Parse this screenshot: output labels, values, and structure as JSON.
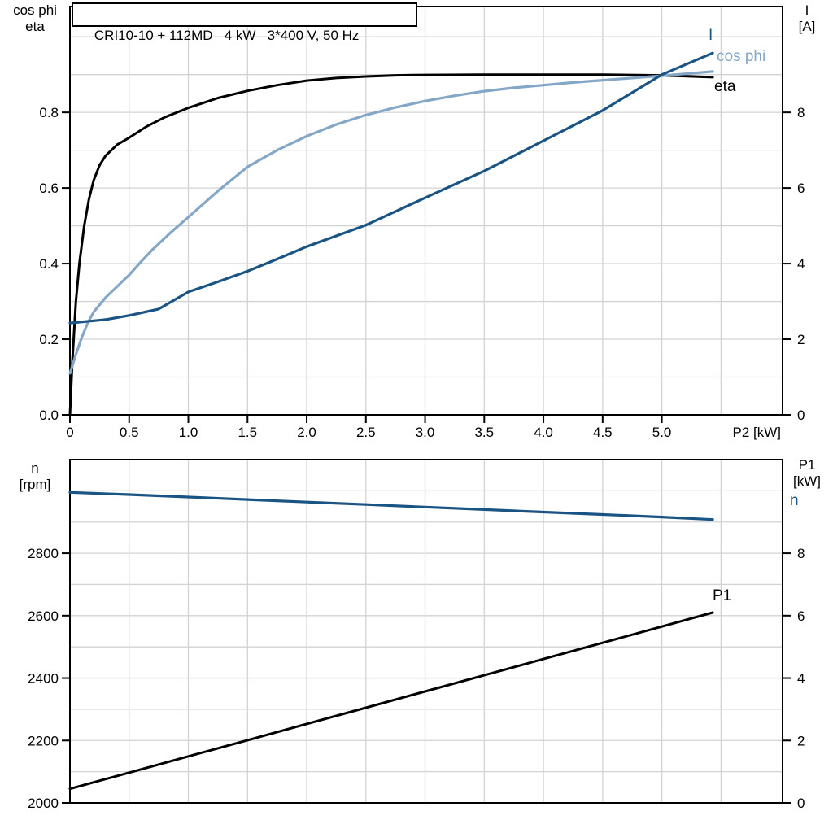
{
  "title": "CRI10-10 + 112MD   4 kW   3*400 V, 50 Hz",
  "colors": {
    "background": "#ffffff",
    "axis": "#000000",
    "grid": "#d3d3d3",
    "black_curve": "#000000",
    "dark_blue_curve": "#1a5484",
    "light_blue_curve": "#84a7c7"
  },
  "top_chart_corner_labels": {
    "left_line1": "cos phi",
    "left_line2": "eta",
    "right_line1": "I",
    "right_line2": "[A]"
  },
  "bottom_chart_corner_labels": {
    "left_line1": "n",
    "left_line2": "[rpm]",
    "right_line1": "P1",
    "right_line2": "[kW]"
  },
  "curve_labels": {
    "top_I": "I",
    "top_cosphi": "cos phi",
    "top_eta": "eta",
    "bottom_n": "n",
    "bottom_P1": "P1"
  },
  "chart_data": [
    {
      "name": "motor-electrical-curves",
      "type": "line",
      "title": "CRI10-10 + 112MD 4 kW 3*400 V, 50 Hz",
      "xlabel": "P2 [kW]",
      "x_range": [
        0,
        6.02
      ],
      "x_grid_step": 0.5,
      "x_ticks": [
        {
          "v": 0,
          "label": "0"
        },
        {
          "v": 0.5,
          "label": "0.5"
        },
        {
          "v": 1,
          "label": "1.0"
        },
        {
          "v": 1.5,
          "label": "1.5"
        },
        {
          "v": 2,
          "label": "2.0"
        },
        {
          "v": 2.5,
          "label": "2.5"
        },
        {
          "v": 3,
          "label": "3.0"
        },
        {
          "v": 3.5,
          "label": "3.5"
        },
        {
          "v": 4,
          "label": "4.0"
        },
        {
          "v": 4.5,
          "label": "4.5"
        },
        {
          "v": 5,
          "label": "5.0"
        }
      ],
      "left_axis": {
        "label": "cos phi / eta",
        "range": [
          0,
          1.08
        ],
        "grid_step": 0.1,
        "ticks": [
          {
            "v": 0,
            "label": "0.0"
          },
          {
            "v": 0.2,
            "label": "0.2"
          },
          {
            "v": 0.4,
            "label": "0.4"
          },
          {
            "v": 0.6,
            "label": "0.6"
          },
          {
            "v": 0.8,
            "label": "0.8"
          }
        ]
      },
      "right_axis": {
        "label": "I [A]",
        "range": [
          0,
          10.8
        ],
        "ticks": [
          {
            "v": 0,
            "label": "0"
          },
          {
            "v": 2,
            "label": "2"
          },
          {
            "v": 4,
            "label": "4"
          },
          {
            "v": 6,
            "label": "6"
          },
          {
            "v": 8,
            "label": "8"
          }
        ]
      },
      "series": [
        {
          "name": "eta",
          "axis": "left",
          "color_key": "black_curve",
          "width": 3,
          "points": [
            [
              0,
              0
            ],
            [
              0.02,
              0.14
            ],
            [
              0.05,
              0.3
            ],
            [
              0.08,
              0.4
            ],
            [
              0.12,
              0.5
            ],
            [
              0.16,
              0.57
            ],
            [
              0.2,
              0.62
            ],
            [
              0.25,
              0.66
            ],
            [
              0.3,
              0.685
            ],
            [
              0.4,
              0.715
            ],
            [
              0.5,
              0.733
            ],
            [
              0.65,
              0.763
            ],
            [
              0.8,
              0.787
            ],
            [
              1.0,
              0.812
            ],
            [
              1.25,
              0.838
            ],
            [
              1.5,
              0.857
            ],
            [
              1.75,
              0.872
            ],
            [
              2.0,
              0.884
            ],
            [
              2.25,
              0.891
            ],
            [
              2.5,
              0.895
            ],
            [
              2.75,
              0.898
            ],
            [
              3.0,
              0.899
            ],
            [
              3.5,
              0.9
            ],
            [
              4.0,
              0.9
            ],
            [
              4.5,
              0.9
            ],
            [
              5.0,
              0.898
            ],
            [
              5.43,
              0.893
            ]
          ]
        },
        {
          "name": "cos phi",
          "axis": "left",
          "color_key": "light_blue_curve",
          "width": 3.2,
          "points": [
            [
              0,
              0.11
            ],
            [
              0.05,
              0.16
            ],
            [
              0.1,
              0.205
            ],
            [
              0.15,
              0.243
            ],
            [
              0.2,
              0.272
            ],
            [
              0.3,
              0.31
            ],
            [
              0.4,
              0.34
            ],
            [
              0.5,
              0.37
            ],
            [
              0.6,
              0.405
            ],
            [
              0.7,
              0.438
            ],
            [
              0.85,
              0.482
            ],
            [
              1.0,
              0.523
            ],
            [
              1.25,
              0.592
            ],
            [
              1.5,
              0.656
            ],
            [
              1.75,
              0.7
            ],
            [
              2.0,
              0.737
            ],
            [
              2.25,
              0.768
            ],
            [
              2.5,
              0.793
            ],
            [
              2.75,
              0.813
            ],
            [
              3.0,
              0.83
            ],
            [
              3.25,
              0.844
            ],
            [
              3.5,
              0.856
            ],
            [
              3.75,
              0.865
            ],
            [
              4.0,
              0.872
            ],
            [
              4.25,
              0.879
            ],
            [
              4.5,
              0.885
            ],
            [
              4.75,
              0.891
            ],
            [
              5.0,
              0.897
            ],
            [
              5.2,
              0.902
            ],
            [
              5.43,
              0.908
            ]
          ]
        },
        {
          "name": "I",
          "axis": "right",
          "color_key": "dark_blue_curve",
          "width": 3.2,
          "points": [
            [
              0,
              2.43
            ],
            [
              0.3,
              2.52
            ],
            [
              0.5,
              2.63
            ],
            [
              0.75,
              2.8
            ],
            [
              1.0,
              3.25
            ],
            [
              1.25,
              3.52
            ],
            [
              1.5,
              3.8
            ],
            [
              1.75,
              4.12
            ],
            [
              2.0,
              4.45
            ],
            [
              2.5,
              5.02
            ],
            [
              3.0,
              5.74
            ],
            [
              3.5,
              6.45
            ],
            [
              4.0,
              7.25
            ],
            [
              4.5,
              8.05
            ],
            [
              5.0,
              9.0
            ],
            [
              5.43,
              9.57
            ]
          ]
        }
      ]
    },
    {
      "name": "speed-power-curves",
      "type": "line",
      "title": "",
      "xlabel": "",
      "x_range": [
        0,
        6.02
      ],
      "x_grid_step": 0.5,
      "x_ticks": [],
      "left_axis": {
        "label": "n [rpm]",
        "range": [
          2000,
          3100
        ],
        "grid_step": 100,
        "ticks": [
          {
            "v": 2000,
            "label": "2000"
          },
          {
            "v": 2200,
            "label": "2200"
          },
          {
            "v": 2400,
            "label": "2400"
          },
          {
            "v": 2600,
            "label": "2600"
          },
          {
            "v": 2800,
            "label": "2800"
          }
        ]
      },
      "right_axis": {
        "label": "P1 [kW]",
        "range": [
          0,
          11
        ],
        "ticks": [
          {
            "v": 0,
            "label": "0"
          },
          {
            "v": 2,
            "label": "2"
          },
          {
            "v": 4,
            "label": "4"
          },
          {
            "v": 6,
            "label": "6"
          },
          {
            "v": 8,
            "label": "8"
          }
        ]
      },
      "series": [
        {
          "name": "P1",
          "axis": "right",
          "color_key": "black_curve",
          "width": 3,
          "points": [
            [
              0,
              0.45
            ],
            [
              0.5,
              0.97
            ],
            [
              1.0,
              1.49
            ],
            [
              1.5,
              2.01
            ],
            [
              2.0,
              2.53
            ],
            [
              2.5,
              3.05
            ],
            [
              3.0,
              3.57
            ],
            [
              3.5,
              4.09
            ],
            [
              4.0,
              4.61
            ],
            [
              4.5,
              5.13
            ],
            [
              5.0,
              5.65
            ],
            [
              5.43,
              6.1
            ]
          ]
        },
        {
          "name": "n",
          "axis": "left",
          "color_key": "dark_blue_curve",
          "width": 3.2,
          "points": [
            [
              0,
              2995
            ],
            [
              0.5,
              2988
            ],
            [
              1.0,
              2980
            ],
            [
              1.5,
              2972
            ],
            [
              2.0,
              2964
            ],
            [
              2.5,
              2956
            ],
            [
              3.0,
              2948
            ],
            [
              3.5,
              2940
            ],
            [
              4.0,
              2932
            ],
            [
              4.5,
              2924
            ],
            [
              5.0,
              2916
            ],
            [
              5.43,
              2908
            ]
          ]
        }
      ]
    }
  ]
}
